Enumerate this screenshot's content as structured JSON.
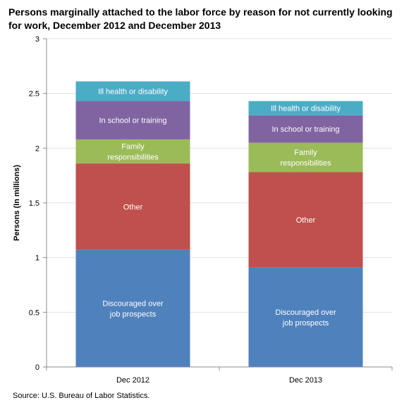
{
  "chart_data": {
    "type": "bar",
    "stacked": true,
    "title": "Persons marginally attached to the labor force by reason for not currently looking for work, December 2012 and December 2013",
    "xlabel": "",
    "ylabel": "Persons (In millions)",
    "ylim": [
      0,
      3
    ],
    "yticks": [
      0,
      0.5,
      1,
      1.5,
      2,
      2.5,
      3
    ],
    "ytick_labels": [
      "0",
      "0.5",
      "1",
      "1.5",
      "2",
      "2.5",
      "3"
    ],
    "categories": [
      "Dec 2012",
      "Dec 2013"
    ],
    "grid": true,
    "series": [
      {
        "name": "Discouraged over job prospects",
        "label_lines": [
          "Discouraged over",
          "job prospects"
        ],
        "values": [
          1.07,
          0.91
        ],
        "color": "#4f81bd"
      },
      {
        "name": "Other",
        "label_lines": [
          "Other"
        ],
        "values": [
          0.79,
          0.87
        ],
        "color": "#c0504d"
      },
      {
        "name": "Family responsibilities",
        "label_lines": [
          "Family",
          "responsibilities"
        ],
        "values": [
          0.22,
          0.27
        ],
        "color": "#9bbb59"
      },
      {
        "name": "In school or training",
        "label_lines": [
          "In school or training"
        ],
        "values": [
          0.35,
          0.25
        ],
        "color": "#8064a2"
      },
      {
        "name": "Ill health or disability",
        "label_lines": [
          "Ill health or disability"
        ],
        "values": [
          0.18,
          0.13
        ],
        "color": "#4bacc6"
      }
    ]
  },
  "source": "Source: U.S. Bureau of Labor Statistics."
}
